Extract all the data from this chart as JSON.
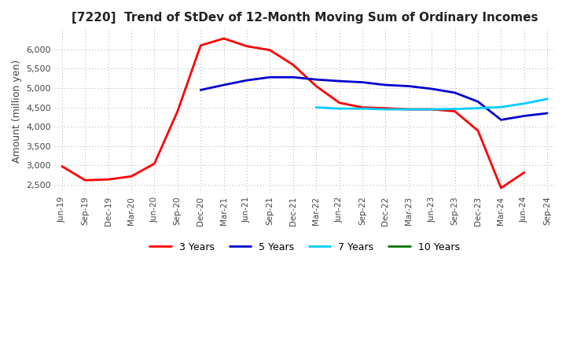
{
  "title": "[7220]  Trend of StDev of 12-Month Moving Sum of Ordinary Incomes",
  "ylabel": "Amount (million yen)",
  "ylim": [
    2300,
    6500
  ],
  "yticks": [
    2500,
    3000,
    3500,
    4000,
    4500,
    5000,
    5500,
    6000
  ],
  "line_colors": {
    "3y": "#ff0000",
    "5y": "#0000cc",
    "7y": "#00ccff",
    "10y": "#007700"
  },
  "legend": [
    "3 Years",
    "5 Years",
    "7 Years",
    "10 Years"
  ],
  "x_labels": [
    "Jun-19",
    "Sep-19",
    "Dec-19",
    "Mar-20",
    "Jun-20",
    "Sep-20",
    "Dec-20",
    "Mar-21",
    "Jun-21",
    "Sep-21",
    "Dec-21",
    "Mar-22",
    "Jun-22",
    "Sep-22",
    "Dec-22",
    "Mar-23",
    "Jun-23",
    "Sep-23",
    "Dec-23",
    "Mar-24",
    "Jun-24",
    "Sep-24"
  ],
  "y_3y": [
    2980,
    2620,
    2640,
    2720,
    3050,
    4400,
    6100,
    6280,
    6080,
    5980,
    5600,
    5050,
    4620,
    4500,
    4480,
    4450,
    4450,
    4400,
    3900,
    2420,
    2820,
    null
  ],
  "y_5y": [
    null,
    null,
    null,
    null,
    null,
    null,
    4950,
    5080,
    5200,
    5280,
    5280,
    5220,
    5180,
    5150,
    5080,
    5050,
    4980,
    4880,
    4650,
    4180,
    4280,
    4350
  ],
  "y_7y": [
    null,
    null,
    null,
    null,
    null,
    null,
    null,
    null,
    null,
    null,
    null,
    4500,
    4470,
    4470,
    4450,
    4450,
    4450,
    4460,
    4480,
    4510,
    4600,
    4720
  ],
  "y_10y": [
    null,
    null,
    null,
    null,
    null,
    null,
    null,
    null,
    null,
    null,
    null,
    null,
    null,
    null,
    null,
    null,
    null,
    null,
    null,
    null,
    null,
    null
  ]
}
